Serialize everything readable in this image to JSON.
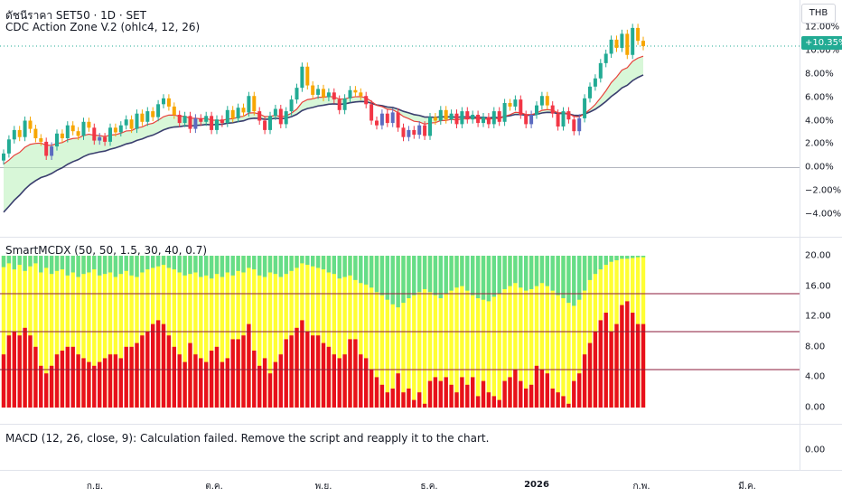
{
  "header": {
    "symbol_line": "ดัชนีราคา SET50 · 1D · SET",
    "indicator1": "CDC Action Zone V.2 (ohlc4, 12, 26)",
    "currency_button": "THB",
    "last_value": "10.35%"
  },
  "pane2": {
    "legend": "SmartMCDX (50, 50, 1.5, 30, 40, 0.7)"
  },
  "pane3": {
    "legend": "MACD (12, 26, close, 9): Calculation failed. Remove the script and reapply it to the chart.",
    "zero_label": "0.00"
  },
  "x_axis_labels": [
    "ก.ย.",
    "ต.ค.",
    "พ.ย.",
    "ธ.ค.",
    "2026",
    "ก.พ.",
    "มี.ค."
  ],
  "colors": {
    "up": "#22ab94",
    "down": "#f23645",
    "fast_ema": "#e8423c",
    "slow_ema": "#3a3e6e",
    "zone_green": "#b8f0b8",
    "retail": "#ffff33",
    "whale": "#e8101b",
    "smart_green": "#66dd88",
    "threshold": "#8b1a3a"
  },
  "chart_data": [
    {
      "type": "candlestick",
      "title": "ดัชนีราคา SET50 · 1D · SET",
      "indicator": "CDC Action Zone V.2 (ohlc4, 12, 26)",
      "y_unit": "percent",
      "y_ticks": [
        "12.00%",
        "10.00%",
        "8.00%",
        "6.00%",
        "4.00%",
        "2.00%",
        "0.00%",
        "−2.00%",
        "−4.00%"
      ],
      "ylim": [
        -4.2,
        12.2
      ],
      "last_value": 10.35,
      "close": [
        1.2,
        2.4,
        3.2,
        2.6,
        4.0,
        3.3,
        2.5,
        2.2,
        1.0,
        1.8,
        2.9,
        2.5,
        3.6,
        3.1,
        2.7,
        3.9,
        3.4,
        2.3,
        2.6,
        2.2,
        3.4,
        3.0,
        3.6,
        4.1,
        3.3,
        4.6,
        3.9,
        4.8,
        4.3,
        5.4,
        5.9,
        5.2,
        4.5,
        3.8,
        4.4,
        3.3,
        4.2,
        3.9,
        4.4,
        3.2,
        4.1,
        3.8,
        4.9,
        4.2,
        5.1,
        4.7,
        6.1,
        4.8,
        4.0,
        3.2,
        4.4,
        5.0,
        3.7,
        4.8,
        5.8,
        6.8,
        8.6,
        7.0,
        6.2,
        6.7,
        6.0,
        6.4,
        5.8,
        4.9,
        5.9,
        6.6,
        6.4,
        6.1,
        5.4,
        4.0,
        3.6,
        4.6,
        3.8,
        4.7,
        3.4,
        2.6,
        3.2,
        2.8,
        3.6,
        2.7,
        4.3,
        4.0,
        4.9,
        4.1,
        4.6,
        3.7,
        4.8,
        4.1,
        4.5,
        3.8,
        4.3,
        3.7,
        4.8,
        3.9,
        5.5,
        5.2,
        5.8,
        4.5,
        3.7,
        4.5,
        5.3,
        6.1,
        5.3,
        4.6,
        3.5,
        4.8,
        4.1,
        3.1,
        4.2,
        5.9,
        6.9,
        7.6,
        8.9,
        9.7,
        10.9,
        10.2,
        11.4,
        9.6,
        11.9,
        10.8,
        10.35
      ],
      "fast_ema_range": [
        0.3,
        9.1
      ],
      "slow_ema_range": [
        -3.8,
        7.4
      ]
    },
    {
      "type": "bar",
      "title": "SmartMCDX (50, 50, 1.5, 30, 40, 0.7)",
      "y_ticks": [
        "20.00",
        "16.00",
        "12.00",
        "8.00",
        "4.00",
        "0.00"
      ],
      "ylim": [
        0,
        20
      ],
      "threshold_lines": [
        15,
        10,
        5
      ],
      "series": [
        {
          "name": "retail",
          "values": [
            20,
            20,
            20,
            20,
            20,
            20,
            20,
            20,
            20,
            20,
            20,
            20,
            20,
            20,
            20,
            20,
            20,
            20,
            20,
            20,
            20,
            20,
            20,
            20,
            20,
            20,
            20,
            20,
            20,
            20,
            20,
            20,
            20,
            20,
            20,
            20,
            20,
            20,
            20,
            20,
            20,
            20,
            20,
            20,
            20,
            20,
            20,
            20,
            20,
            20,
            20,
            20,
            20,
            20,
            20,
            20,
            20,
            20,
            20,
            20,
            20,
            20,
            20,
            20,
            20,
            20,
            20,
            20,
            20,
            20,
            20,
            20,
            20,
            20,
            20,
            20,
            20,
            20,
            20,
            20,
            20,
            20,
            20,
            20,
            20,
            20,
            20,
            20,
            20,
            20,
            20,
            20,
            20,
            20,
            20,
            20,
            20,
            20,
            20,
            20,
            20,
            20,
            20,
            20,
            20,
            20,
            20,
            20,
            20,
            20,
            20,
            20,
            20,
            20,
            20,
            20,
            20,
            20,
            20,
            20,
            20
          ]
        },
        {
          "name": "smart_money",
          "values": [
            1.5,
            1.0,
            1.8,
            1.2,
            2.0,
            1.4,
            1.0,
            2.2,
            1.6,
            2.4,
            2.0,
            1.8,
            2.6,
            2.2,
            2.8,
            2.4,
            2.2,
            1.8,
            2.6,
            2.4,
            2.2,
            2.8,
            2.4,
            2.0,
            2.6,
            2.8,
            2.2,
            1.8,
            1.6,
            1.4,
            1.2,
            1.6,
            1.8,
            2.2,
            2.6,
            2.4,
            2.2,
            2.8,
            2.6,
            3.0,
            2.4,
            2.8,
            2.2,
            2.6,
            2.0,
            2.2,
            1.6,
            1.8,
            2.6,
            2.8,
            2.2,
            2.4,
            2.8,
            2.4,
            2.0,
            1.6,
            1.0,
            1.2,
            1.4,
            1.6,
            1.8,
            2.2,
            2.4,
            3.0,
            2.8,
            2.6,
            3.2,
            3.6,
            3.8,
            4.2,
            4.8,
            5.2,
            5.8,
            6.4,
            6.8,
            6.2,
            5.6,
            5.2,
            4.8,
            4.4,
            4.8,
            5.2,
            5.6,
            5.0,
            4.6,
            4.2,
            4.0,
            4.6,
            5.2,
            5.6,
            5.8,
            6.0,
            5.4,
            5.0,
            4.4,
            4.0,
            3.6,
            4.2,
            4.6,
            4.4,
            4.0,
            3.6,
            4.0,
            4.6,
            5.2,
            5.6,
            6.2,
            6.6,
            5.8,
            4.6,
            3.2,
            2.4,
            1.8,
            1.2,
            0.8,
            0.6,
            0.4,
            0.4,
            0.3,
            0.2,
            0.2
          ]
        },
        {
          "name": "whale",
          "values": [
            7.0,
            9.5,
            10.0,
            9.5,
            10.5,
            9.5,
            8.0,
            5.5,
            4.5,
            5.5,
            7.0,
            7.5,
            8.0,
            8.0,
            7.0,
            6.5,
            6.0,
            5.5,
            6.0,
            6.5,
            7.0,
            7.0,
            6.5,
            8.0,
            8.0,
            8.5,
            9.5,
            10.0,
            11.0,
            11.5,
            11.0,
            9.5,
            8.0,
            7.0,
            6.0,
            8.5,
            7.0,
            6.5,
            6.0,
            7.5,
            8.0,
            6.0,
            6.5,
            9.0,
            9.0,
            9.5,
            11.0,
            7.5,
            5.5,
            6.5,
            4.5,
            6.0,
            7.0,
            9.0,
            9.5,
            10.5,
            11.5,
            10.0,
            9.5,
            9.5,
            8.5,
            8.0,
            7.0,
            6.5,
            7.0,
            9.0,
            9.0,
            7.0,
            6.5,
            5.0,
            4.0,
            3.0,
            2.0,
            2.5,
            4.5,
            2.0,
            2.5,
            1.0,
            2.0,
            0.5,
            3.5,
            4.0,
            3.5,
            4.0,
            3.0,
            2.0,
            4.0,
            3.0,
            4.0,
            1.5,
            3.5,
            2.0,
            1.5,
            1.0,
            3.5,
            4.0,
            5.0,
            3.5,
            2.5,
            3.0,
            5.5,
            5.0,
            4.5,
            2.5,
            2.0,
            1.5,
            0.5,
            3.5,
            4.5,
            7.0,
            8.5,
            10.0,
            11.5,
            12.5,
            10.0,
            11.0,
            13.5,
            14.0,
            12.5,
            11.0,
            11.0
          ]
        }
      ]
    }
  ]
}
